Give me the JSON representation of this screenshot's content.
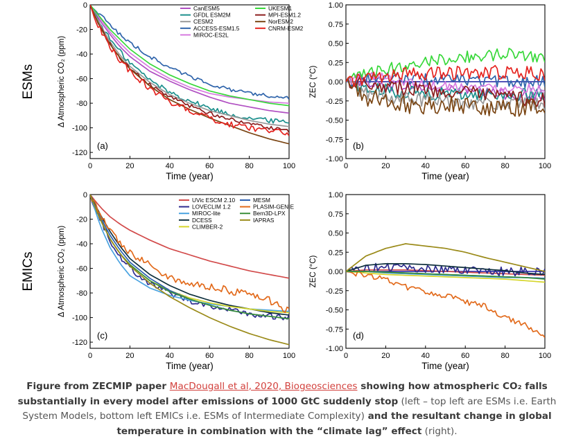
{
  "row_labels": {
    "top": "ESMs",
    "bottom": "EMICs"
  },
  "caption": {
    "part1": "Figure from ZECMIP paper ",
    "link": "MacDougall et al, 2020, Biogeosciences",
    "part2": " showing how atmospheric CO₂ falls substantially in every model after emissions of 1000 GtC suddenly stop",
    "part3": " (left – top left are ESMs i.e. Earth System Models, bottom left EMICs i.e. ESMs of Intermediate Complexity)",
    "part4": " and the resultant change in global temperature in combination with the “climate lag” effect",
    "part5": " (right)."
  },
  "chart_data": [
    {
      "type": "line",
      "panel_label": "(a)",
      "xlabel": "Time (year)",
      "ylabel": "Δ Atmospheric CO₂ (ppm)",
      "xlim": [
        0,
        100
      ],
      "ylim": [
        -125,
        0
      ],
      "xticks": [
        0,
        20,
        40,
        60,
        80,
        100
      ],
      "yticks": [
        0,
        -20,
        -40,
        -60,
        -80,
        -100,
        -120
      ],
      "legend": "top-right",
      "x": [
        0,
        5,
        10,
        15,
        20,
        30,
        40,
        50,
        60,
        70,
        80,
        90,
        100
      ],
      "series": [
        {
          "name": "CanESM5",
          "color": "#b04fc2",
          "noise": 0,
          "values": [
            0,
            -13,
            -24,
            -34,
            -42,
            -54,
            -62,
            -69,
            -75,
            -80,
            -83,
            -86,
            -88
          ]
        },
        {
          "name": "GFDL ESM2M",
          "color": "#1b8f8c",
          "noise": 2,
          "values": [
            0,
            -15,
            -28,
            -38,
            -47,
            -61,
            -71,
            -78,
            -84,
            -89,
            -92,
            -94,
            -95
          ]
        },
        {
          "name": "CESM2",
          "color": "#999999",
          "noise": 0,
          "values": [
            0,
            -16,
            -30,
            -41,
            -50,
            -63,
            -73,
            -80,
            -86,
            -90,
            -94,
            -97,
            -99
          ]
        },
        {
          "name": "ACCESS-ESM1.5",
          "color": "#2f64ab",
          "noise": 1.5,
          "values": [
            0,
            -8,
            -16,
            -24,
            -31,
            -42,
            -51,
            -58,
            -64,
            -69,
            -72,
            -74,
            -76
          ]
        },
        {
          "name": "MIROC-ES2L",
          "color": "#d77ae0",
          "noise": 0,
          "values": [
            0,
            -11,
            -22,
            -31,
            -39,
            -51,
            -60,
            -67,
            -72,
            -75,
            -77,
            -79,
            -80
          ]
        },
        {
          "name": "UKESM1",
          "color": "#38d83a",
          "noise": 0,
          "values": [
            0,
            -10,
            -20,
            -28,
            -36,
            -48,
            -57,
            -64,
            -70,
            -74,
            -77,
            -80,
            -82
          ]
        },
        {
          "name": "MPI-ESM1.2",
          "color": "#8b1d1d",
          "noise": 1.5,
          "values": [
            0,
            -18,
            -32,
            -43,
            -52,
            -65,
            -75,
            -82,
            -88,
            -93,
            -97,
            -100,
            -103
          ]
        },
        {
          "name": "NorESM2",
          "color": "#7a4513",
          "noise": 0,
          "values": [
            0,
            -18,
            -32,
            -43,
            -52,
            -66,
            -77,
            -85,
            -92,
            -98,
            -104,
            -109,
            -113
          ]
        },
        {
          "name": "CNRM-ESM2",
          "color": "#e5231f",
          "noise": 2.5,
          "values": [
            0,
            -20,
            -34,
            -45,
            -54,
            -68,
            -79,
            -86,
            -92,
            -97,
            -100,
            -102,
            -105
          ]
        }
      ]
    },
    {
      "type": "line",
      "panel_label": "(b)",
      "xlabel": "Time (year)",
      "ylabel": "ZEC (°C)",
      "xlim": [
        0,
        100
      ],
      "ylim": [
        -1.0,
        1.0
      ],
      "xticks": [
        0,
        20,
        40,
        60,
        80,
        100
      ],
      "yticks": [
        1.0,
        0.75,
        0.5,
        0.25,
        0.0,
        -0.25,
        -0.5,
        -0.75,
        -1.0
      ],
      "reference_line": 0.0,
      "x": [
        0,
        10,
        20,
        30,
        40,
        50,
        60,
        70,
        80,
        90,
        100
      ],
      "series": [
        {
          "name": "CanESM5",
          "color": "#b04fc2",
          "noise": 0.07,
          "values": [
            0,
            0.0,
            -0.05,
            -0.05,
            -0.08,
            -0.1,
            -0.12,
            -0.14,
            -0.16,
            -0.18,
            -0.2
          ]
        },
        {
          "name": "GFDL ESM2M",
          "color": "#1b8f8c",
          "noise": 0.09,
          "values": [
            0,
            -0.1,
            -0.12,
            -0.13,
            -0.15,
            -0.15,
            -0.16,
            -0.17,
            -0.17,
            -0.18,
            -0.18
          ]
        },
        {
          "name": "CESM2",
          "color": "#999999",
          "noise": 0.09,
          "values": [
            0,
            -0.15,
            -0.2,
            -0.22,
            -0.24,
            -0.25,
            -0.26,
            -0.28,
            -0.3,
            -0.3,
            -0.3
          ]
        },
        {
          "name": "ACCESS-ESM1.5",
          "color": "#2f64ab",
          "noise": 0.08,
          "values": [
            0,
            0.05,
            0.05,
            0.04,
            0.03,
            0.02,
            0.02,
            0.01,
            0.0,
            0.0,
            0.0
          ]
        },
        {
          "name": "MIROC-ES2L",
          "color": "#d77ae0",
          "noise": 0.06,
          "values": [
            0,
            0.1,
            0.05,
            0.0,
            -0.03,
            -0.05,
            -0.06,
            -0.07,
            -0.08,
            -0.08,
            -0.08
          ]
        },
        {
          "name": "UKESM1",
          "color": "#38d83a",
          "noise": 0.08,
          "values": [
            0,
            0.1,
            0.15,
            0.22,
            0.27,
            0.3,
            0.32,
            0.34,
            0.36,
            0.35,
            0.32
          ]
        },
        {
          "name": "MPI-ESM1.2",
          "color": "#8b1d1d",
          "noise": 0.1,
          "values": [
            0,
            0.0,
            -0.05,
            -0.08,
            -0.1,
            -0.12,
            -0.15,
            -0.18,
            -0.2,
            -0.22,
            -0.24
          ]
        },
        {
          "name": "NorESM2",
          "color": "#7a4513",
          "noise": 0.12,
          "values": [
            0,
            -0.2,
            -0.25,
            -0.3,
            -0.3,
            -0.3,
            -0.3,
            -0.32,
            -0.35,
            -0.32,
            -0.3
          ]
        },
        {
          "name": "CNRM-ESM2",
          "color": "#e5231f",
          "noise": 0.09,
          "values": [
            0,
            0.05,
            0.05,
            0.1,
            0.1,
            0.1,
            0.12,
            0.12,
            0.12,
            0.12,
            0.1
          ]
        }
      ]
    },
    {
      "type": "line",
      "panel_label": "(c)",
      "xlabel": "Time (year)",
      "ylabel": "Δ Atmospheric CO₂ (ppm)",
      "xlim": [
        0,
        100
      ],
      "ylim": [
        -125,
        0
      ],
      "xticks": [
        0,
        20,
        40,
        60,
        80,
        100
      ],
      "yticks": [
        0,
        -20,
        -40,
        -60,
        -80,
        -100,
        -120
      ],
      "legend": "top-right",
      "x": [
        0,
        5,
        10,
        15,
        20,
        30,
        40,
        50,
        60,
        70,
        80,
        90,
        100
      ],
      "series": [
        {
          "name": "UVic ESCM 2.10",
          "color": "#d24a4a",
          "noise": 0,
          "values": [
            0,
            -10,
            -18,
            -24,
            -29,
            -37,
            -44,
            -49,
            -54,
            -58,
            -62,
            -65,
            -68
          ]
        },
        {
          "name": "LOVECLIM 1.2",
          "color": "#2e2b8f",
          "noise": 2.5,
          "values": [
            0,
            -20,
            -37,
            -50,
            -60,
            -72,
            -80,
            -86,
            -90,
            -94,
            -97,
            -99,
            -100
          ]
        },
        {
          "name": "MIROC-lite",
          "color": "#4aa3e0",
          "noise": 0,
          "values": [
            0,
            -25,
            -43,
            -56,
            -66,
            -76,
            -82,
            -86,
            -89,
            -91,
            -93,
            -94,
            -95
          ]
        },
        {
          "name": "DCESS",
          "color": "#0e2f3c",
          "noise": 0,
          "values": [
            0,
            -16,
            -30,
            -42,
            -52,
            -65,
            -74,
            -81,
            -86,
            -90,
            -93,
            -96,
            -98
          ]
        },
        {
          "name": "CLIMBER-2",
          "color": "#d6d62a",
          "noise": 0,
          "values": [
            0,
            -20,
            -36,
            -48,
            -57,
            -70,
            -78,
            -84,
            -88,
            -91,
            -93,
            -95,
            -96
          ]
        },
        {
          "name": "MESM",
          "color": "#2b5fb0",
          "noise": 0,
          "values": [
            0,
            -18,
            -33,
            -45,
            -55,
            -68,
            -78,
            -85,
            -90,
            -94,
            -97,
            -99,
            -101
          ]
        },
        {
          "name": "PLASIM-GENIE",
          "color": "#e26a1b",
          "noise": 3,
          "values": [
            0,
            -16,
            -30,
            -40,
            -47,
            -57,
            -68,
            -72,
            -75,
            -78,
            -82,
            -86,
            -95
          ]
        },
        {
          "name": "Bern3D-LPX",
          "color": "#3a8f3a",
          "noise": 0,
          "values": [
            0,
            -20,
            -36,
            -48,
            -57,
            -70,
            -79,
            -85,
            -90,
            -94,
            -97,
            -99,
            -101
          ]
        },
        {
          "name": "IAPRAS",
          "color": "#9a8a18",
          "noise": 0,
          "values": [
            0,
            -20,
            -36,
            -48,
            -58,
            -72,
            -83,
            -92,
            -100,
            -107,
            -113,
            -118,
            -122
          ]
        }
      ]
    },
    {
      "type": "line",
      "panel_label": "(d)",
      "xlabel": "Time (year)",
      "ylabel": "ZEC (°C)",
      "xlim": [
        0,
        100
      ],
      "ylim": [
        -1.0,
        1.0
      ],
      "xticks": [
        0,
        20,
        40,
        60,
        80,
        100
      ],
      "yticks": [
        1.0,
        0.75,
        0.5,
        0.25,
        0.0,
        -0.25,
        -0.5,
        -0.75,
        -1.0
      ],
      "reference_line": 0.0,
      "x": [
        0,
        10,
        20,
        30,
        40,
        50,
        60,
        70,
        80,
        90,
        100
      ],
      "series": [
        {
          "name": "UVic ESCM 2.10",
          "color": "#d24a4a",
          "noise": 0,
          "values": [
            0,
            0.02,
            0.02,
            0.02,
            0.01,
            0.0,
            -0.01,
            -0.02,
            -0.03,
            -0.04,
            -0.05
          ]
        },
        {
          "name": "LOVECLIM 1.2",
          "color": "#2e2b8f",
          "noise": 0.06,
          "values": [
            0,
            0.05,
            0.05,
            0.04,
            0.03,
            0.02,
            0.01,
            0.0,
            0.0,
            0.0,
            0.0
          ]
        },
        {
          "name": "MIROC-lite",
          "color": "#4aa3e0",
          "noise": 0,
          "values": [
            0,
            0.0,
            -0.02,
            -0.03,
            -0.04,
            -0.05,
            -0.06,
            -0.07,
            -0.08,
            -0.08,
            -0.09
          ]
        },
        {
          "name": "DCESS",
          "color": "#0e2f3c",
          "noise": 0,
          "values": [
            0,
            0.08,
            0.1,
            0.1,
            0.09,
            0.07,
            0.05,
            0.03,
            0.01,
            -0.02,
            -0.04
          ]
        },
        {
          "name": "CLIMBER-2",
          "color": "#d6d62a",
          "noise": 0,
          "values": [
            0,
            -0.02,
            -0.04,
            -0.05,
            -0.06,
            -0.07,
            -0.08,
            -0.09,
            -0.1,
            -0.12,
            -0.14
          ]
        },
        {
          "name": "MESM",
          "color": "#2b5fb0",
          "noise": 0,
          "values": [
            0,
            0.0,
            -0.01,
            -0.02,
            -0.03,
            -0.04,
            -0.05,
            -0.06,
            -0.07,
            -0.08,
            -0.09
          ]
        },
        {
          "name": "PLASIM-GENIE",
          "color": "#e26a1b",
          "noise": 0.04,
          "values": [
            0,
            -0.05,
            -0.1,
            -0.2,
            -0.27,
            -0.32,
            -0.4,
            -0.45,
            -0.6,
            -0.7,
            -0.88
          ]
        },
        {
          "name": "Bern3D-LPX",
          "color": "#3a8f3a",
          "noise": 0,
          "values": [
            0,
            0.0,
            -0.01,
            -0.02,
            -0.03,
            -0.04,
            -0.05,
            -0.06,
            -0.07,
            -0.08,
            -0.1
          ]
        },
        {
          "name": "IAPRAS",
          "color": "#9a8a18",
          "noise": 0,
          "values": [
            0,
            0.2,
            0.3,
            0.36,
            0.33,
            0.3,
            0.25,
            0.18,
            0.12,
            0.06,
            0.0
          ]
        }
      ]
    }
  ]
}
